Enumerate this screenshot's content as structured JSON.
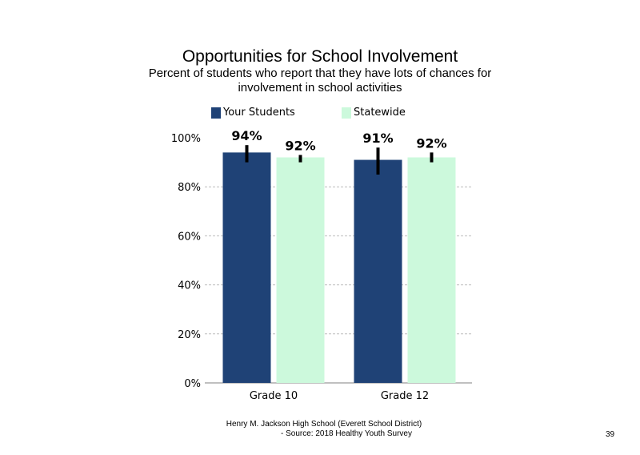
{
  "slide": {
    "title": "Opportunities  for School Involvement",
    "subtitle": "Percent of students  who report that they have lots of chances for involvement  in school activities",
    "footer_line1": "Henry M.  Jackson High  School (Everett School District)",
    "footer_line2": "- Source: 2018 Healthy  Youth Survey",
    "page_number": "39"
  },
  "chart_data": {
    "type": "bar",
    "categories": [
      "Grade 10",
      "Grade 12"
    ],
    "series": [
      {
        "name": "Your Students",
        "values": [
          94,
          91
        ],
        "labels": [
          "94%",
          "91%"
        ],
        "error_low": [
          90,
          85
        ],
        "error_high": [
          97,
          96
        ],
        "color": "#1f4276"
      },
      {
        "name": "Statewide",
        "values": [
          92,
          92
        ],
        "labels": [
          "92%",
          "92%"
        ],
        "error_low": [
          90,
          90
        ],
        "error_high": [
          93,
          94
        ],
        "color": "#ccf9dc"
      }
    ],
    "ylim": [
      0,
      100
    ],
    "yticks": [
      0,
      20,
      40,
      60,
      80,
      100
    ],
    "ytick_labels": [
      "0%",
      "20%",
      "40%",
      "60%",
      "80%",
      "100%"
    ],
    "xlabel": "",
    "ylabel": "",
    "grid": true,
    "legend_position": "top"
  }
}
